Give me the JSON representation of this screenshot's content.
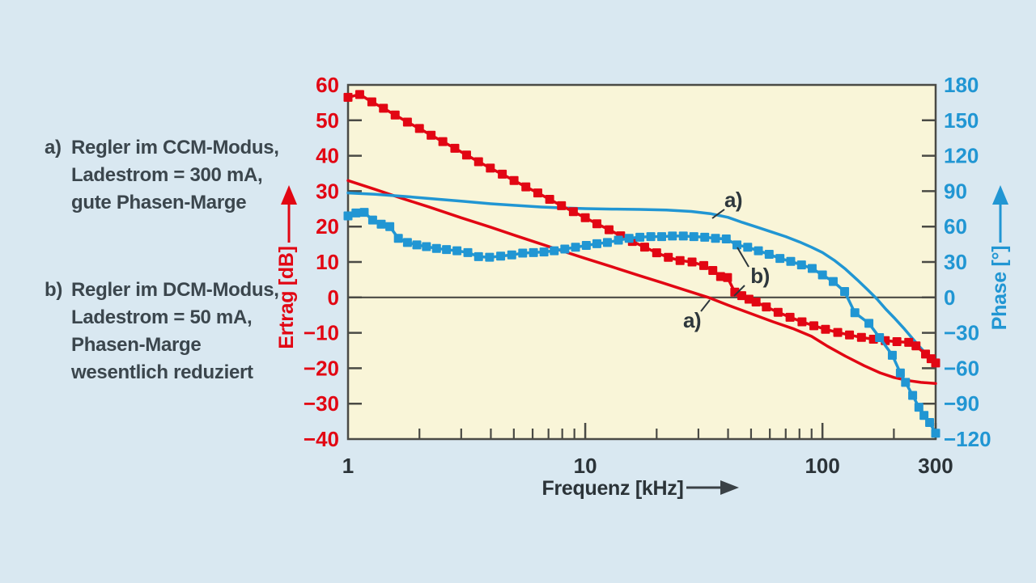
{
  "page": {
    "background": "#d9e8f1"
  },
  "legend": {
    "items": [
      {
        "marker": "a)",
        "lines": [
          "Regler im CCM-Modus,",
          "Ladestrom = 300 mA,",
          "gute Phasen-Marge"
        ]
      },
      {
        "marker": "b)",
        "lines": [
          "Regler im DCM-Modus,",
          "Ladestrom = 50 mA,",
          "Phasen-Marge",
          "wesentlich reduziert"
        ]
      }
    ]
  },
  "chart_data": {
    "type": "line",
    "plot_background": "#f9f5d8",
    "frame_color": "#4a4a45",
    "x_axis": {
      "label": "Frequenz [kHz]",
      "scale": "log",
      "min": 1,
      "max": 300,
      "labeled_ticks": [
        1,
        10,
        100,
        300
      ],
      "minor_ticks": [
        2,
        3,
        4,
        5,
        6,
        7,
        8,
        9,
        20,
        30,
        40,
        50,
        60,
        70,
        80,
        90,
        200
      ]
    },
    "y_axis_left": {
      "label": "Ertrag [dB]",
      "color": "#e20613",
      "min": -40,
      "max": 60,
      "ticks": [
        60,
        50,
        40,
        30,
        20,
        10,
        0,
        -10,
        -20,
        -30,
        -40
      ]
    },
    "y_axis_right": {
      "label": "Phase [°]",
      "color": "#2196d3",
      "min": -120,
      "max": 180,
      "ticks": [
        180,
        150,
        120,
        90,
        60,
        30,
        0,
        -30,
        -60,
        -90,
        -120
      ]
    },
    "zero_line_value": 0,
    "series": [
      {
        "id": "gain-a",
        "curve_label": "a)",
        "axis": "left",
        "color": "#e20613",
        "marker": "none",
        "points": [
          [
            1,
            33
          ],
          [
            1.3,
            30.5
          ],
          [
            1.7,
            27.9
          ],
          [
            2.2,
            25.5
          ],
          [
            3,
            22.5
          ],
          [
            4,
            19.8
          ],
          [
            5,
            17.6
          ],
          [
            6.5,
            15.1
          ],
          [
            8,
            13.1
          ],
          [
            10,
            11
          ],
          [
            13,
            8.6
          ],
          [
            17,
            6.1
          ],
          [
            21,
            4.2
          ],
          [
            26,
            2.2
          ],
          [
            33,
            0
          ],
          [
            40,
            -2.2
          ],
          [
            50,
            -4.6
          ],
          [
            62,
            -6.9
          ],
          [
            75,
            -8.8
          ],
          [
            90,
            -11
          ],
          [
            105,
            -13.8
          ],
          [
            125,
            -16.6
          ],
          [
            150,
            -19.3
          ],
          [
            175,
            -21.3
          ],
          [
            200,
            -22.6
          ],
          [
            230,
            -23.5
          ],
          [
            260,
            -24
          ],
          [
            300,
            -24.3
          ]
        ]
      },
      {
        "id": "phase-a",
        "curve_label": "a)",
        "axis": "right",
        "color": "#2196d3",
        "marker": "none",
        "points": [
          [
            1,
            88.5
          ],
          [
            1.3,
            87.3
          ],
          [
            1.7,
            85.7
          ],
          [
            2.2,
            83.8
          ],
          [
            3,
            81.5
          ],
          [
            4,
            79.3
          ],
          [
            5,
            78
          ],
          [
            6.5,
            76.6
          ],
          [
            8,
            75.8
          ],
          [
            10,
            75.2
          ],
          [
            13,
            74.8
          ],
          [
            17,
            74.5
          ],
          [
            22,
            74
          ],
          [
            28,
            72.8
          ],
          [
            34,
            70.8
          ],
          [
            40,
            67.8
          ],
          [
            46,
            63.5
          ],
          [
            53,
            59.5
          ],
          [
            61,
            55.5
          ],
          [
            70,
            51.5
          ],
          [
            80,
            47
          ],
          [
            90,
            42.5
          ],
          [
            100,
            38
          ],
          [
            112,
            31.5
          ],
          [
            125,
            24
          ],
          [
            140,
            15
          ],
          [
            155,
            6.5
          ],
          [
            170,
            -1.5
          ],
          [
            185,
            -10
          ],
          [
            200,
            -17
          ],
          [
            220,
            -26
          ],
          [
            240,
            -35
          ],
          [
            260,
            -43
          ],
          [
            280,
            -50
          ],
          [
            300,
            -56
          ]
        ]
      },
      {
        "id": "gain-b",
        "curve_label": "b)",
        "axis": "left",
        "color": "#e20613",
        "marker": "square",
        "points": [
          [
            1,
            56.5
          ],
          [
            1.12,
            57.3
          ],
          [
            1.26,
            55.2
          ],
          [
            1.41,
            53.4
          ],
          [
            1.58,
            51.5
          ],
          [
            1.78,
            49.5
          ],
          [
            2,
            47.7
          ],
          [
            2.24,
            45.8
          ],
          [
            2.51,
            44
          ],
          [
            2.82,
            42.1
          ],
          [
            3.16,
            40.2
          ],
          [
            3.55,
            38.3
          ],
          [
            3.98,
            36.5
          ],
          [
            4.47,
            34.8
          ],
          [
            5.01,
            33
          ],
          [
            5.62,
            31.2
          ],
          [
            6.31,
            29.5
          ],
          [
            7.08,
            27.7
          ],
          [
            7.94,
            25.9
          ],
          [
            8.91,
            24.2
          ],
          [
            10,
            22.5
          ],
          [
            11.2,
            20.8
          ],
          [
            12.6,
            19.1
          ],
          [
            14.1,
            17.4
          ],
          [
            15.8,
            15.8
          ],
          [
            17.8,
            14.2
          ],
          [
            20,
            12.6
          ],
          [
            22.4,
            11.3
          ],
          [
            25.1,
            10.4
          ],
          [
            28.2,
            10
          ],
          [
            31.6,
            9
          ],
          [
            34.5,
            7.6
          ],
          [
            37.2,
            5.9
          ],
          [
            39.8,
            5.6
          ],
          [
            42.7,
            1.5
          ],
          [
            45.7,
            0.5
          ],
          [
            49,
            -0.5
          ],
          [
            52.5,
            -1.3
          ],
          [
            58,
            -2.7
          ],
          [
            65,
            -4.2
          ],
          [
            73,
            -5.6
          ],
          [
            82,
            -6.9
          ],
          [
            92,
            -8
          ],
          [
            103,
            -9
          ],
          [
            116,
            -9.9
          ],
          [
            130,
            -10.6
          ],
          [
            146,
            -11.3
          ],
          [
            164,
            -11.8
          ],
          [
            184,
            -12.2
          ],
          [
            206,
            -12.5
          ],
          [
            231,
            -12.7
          ],
          [
            248,
            -13.7
          ],
          [
            272,
            -16
          ],
          [
            287,
            -17.3
          ],
          [
            300,
            -18.5
          ]
        ]
      },
      {
        "id": "phase-b",
        "curve_label": "b)",
        "axis": "right",
        "color": "#2196d3",
        "marker": "square",
        "points": [
          [
            1,
            69
          ],
          [
            1.08,
            71.5
          ],
          [
            1.17,
            72
          ],
          [
            1.27,
            65.5
          ],
          [
            1.38,
            62
          ],
          [
            1.5,
            60
          ],
          [
            1.63,
            50
          ],
          [
            1.78,
            46.5
          ],
          [
            1.95,
            44.5
          ],
          [
            2.14,
            43
          ],
          [
            2.36,
            41.5
          ],
          [
            2.6,
            40.5
          ],
          [
            2.88,
            39.5
          ],
          [
            3.2,
            38
          ],
          [
            3.55,
            34.5
          ],
          [
            3.95,
            34
          ],
          [
            4.4,
            35
          ],
          [
            4.9,
            36
          ],
          [
            5.45,
            37.5
          ],
          [
            6.05,
            38
          ],
          [
            6.7,
            38.5
          ],
          [
            7.4,
            39.5
          ],
          [
            8.2,
            41
          ],
          [
            9.1,
            42.5
          ],
          [
            10.1,
            44
          ],
          [
            11.2,
            45.5
          ],
          [
            12.4,
            46.5
          ],
          [
            13.8,
            48.5
          ],
          [
            15.3,
            50
          ],
          [
            17,
            51
          ],
          [
            18.9,
            51.5
          ],
          [
            21,
            51.5
          ],
          [
            23.3,
            52
          ],
          [
            25.9,
            52
          ],
          [
            28.7,
            51.5
          ],
          [
            31.9,
            51
          ],
          [
            35.4,
            50
          ],
          [
            39.3,
            49.5
          ],
          [
            43.6,
            44.5
          ],
          [
            48.4,
            42.5
          ],
          [
            53.7,
            39.5
          ],
          [
            59.6,
            36.5
          ],
          [
            66.2,
            33
          ],
          [
            73.5,
            30.5
          ],
          [
            81.6,
            27.5
          ],
          [
            90.5,
            24.5
          ],
          [
            100,
            19
          ],
          [
            111,
            13.5
          ],
          [
            124,
            5
          ],
          [
            137,
            -13
          ],
          [
            157,
            -22
          ],
          [
            174,
            -34
          ],
          [
            197,
            -49
          ],
          [
            213,
            -64
          ],
          [
            224,
            -72
          ],
          [
            240,
            -83
          ],
          [
            255,
            -93
          ],
          [
            268,
            -100
          ],
          [
            283,
            -106
          ],
          [
            300,
            -115
          ]
        ]
      }
    ],
    "annotations": [
      {
        "label": "a)",
        "text_xy": [
          906,
          247
        ],
        "leaders": [
          [
            [
              895,
              259
            ],
            [
              880,
              270
            ]
          ]
        ]
      },
      {
        "label": "b)",
        "text_xy": [
          939,
          341
        ],
        "leaders": [
          [
            [
              925,
              330
            ],
            [
              911,
              306
            ]
          ],
          [
            [
              920,
              353
            ],
            [
              907,
              366
            ]
          ]
        ]
      },
      {
        "label": "a)",
        "text_xy": [
          855,
          396
        ],
        "leaders": [
          [
            [
              866,
              385
            ],
            [
              877,
              371
            ]
          ]
        ]
      }
    ]
  }
}
